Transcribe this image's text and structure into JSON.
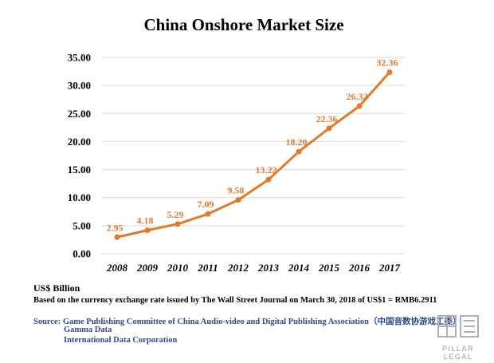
{
  "chart_data": {
    "type": "line",
    "title": "China Onshore Market Size",
    "categories": [
      "2008",
      "2009",
      "2010",
      "2011",
      "2012",
      "2013",
      "2014",
      "2015",
      "2016",
      "2017"
    ],
    "series": [
      {
        "values": [
          2.95,
          4.18,
          5.29,
          7.09,
          9.58,
          13.22,
          18.2,
          22.36,
          26.32,
          32.36
        ]
      }
    ],
    "data_labels": [
      "2.95",
      "4.18",
      "5.29",
      "7.09",
      "9.58",
      "13.22",
      "18.20",
      "22.36",
      "26.32",
      "32.36"
    ],
    "y_ticks": [
      "0.00",
      "5.00",
      "10.00",
      "15.00",
      "20.00",
      "25.00",
      "30.00",
      "35.00"
    ],
    "ylim": [
      0,
      35
    ],
    "grid": "horizontal",
    "legend": "none",
    "line_color": "#e07b2a",
    "label_color": "#e07b2a"
  },
  "footer": {
    "unit": "US$ Billion",
    "note": "Based on the currency exchange rate issued by The Wall Street Journal on March 30, 2018 of US$1 =  RMB6.2911",
    "sources": [
      "Source: Game Publishing Committee of China Audio-video and Digital Publishing Association（中国音数协游戏工委）",
      "Gamma Data",
      "International Data Corporation"
    ],
    "source_color": "#2e4a8a"
  },
  "logo": {
    "text": "PILLAR LEGAL",
    "icon": "pillar-legal-logo-icon"
  }
}
